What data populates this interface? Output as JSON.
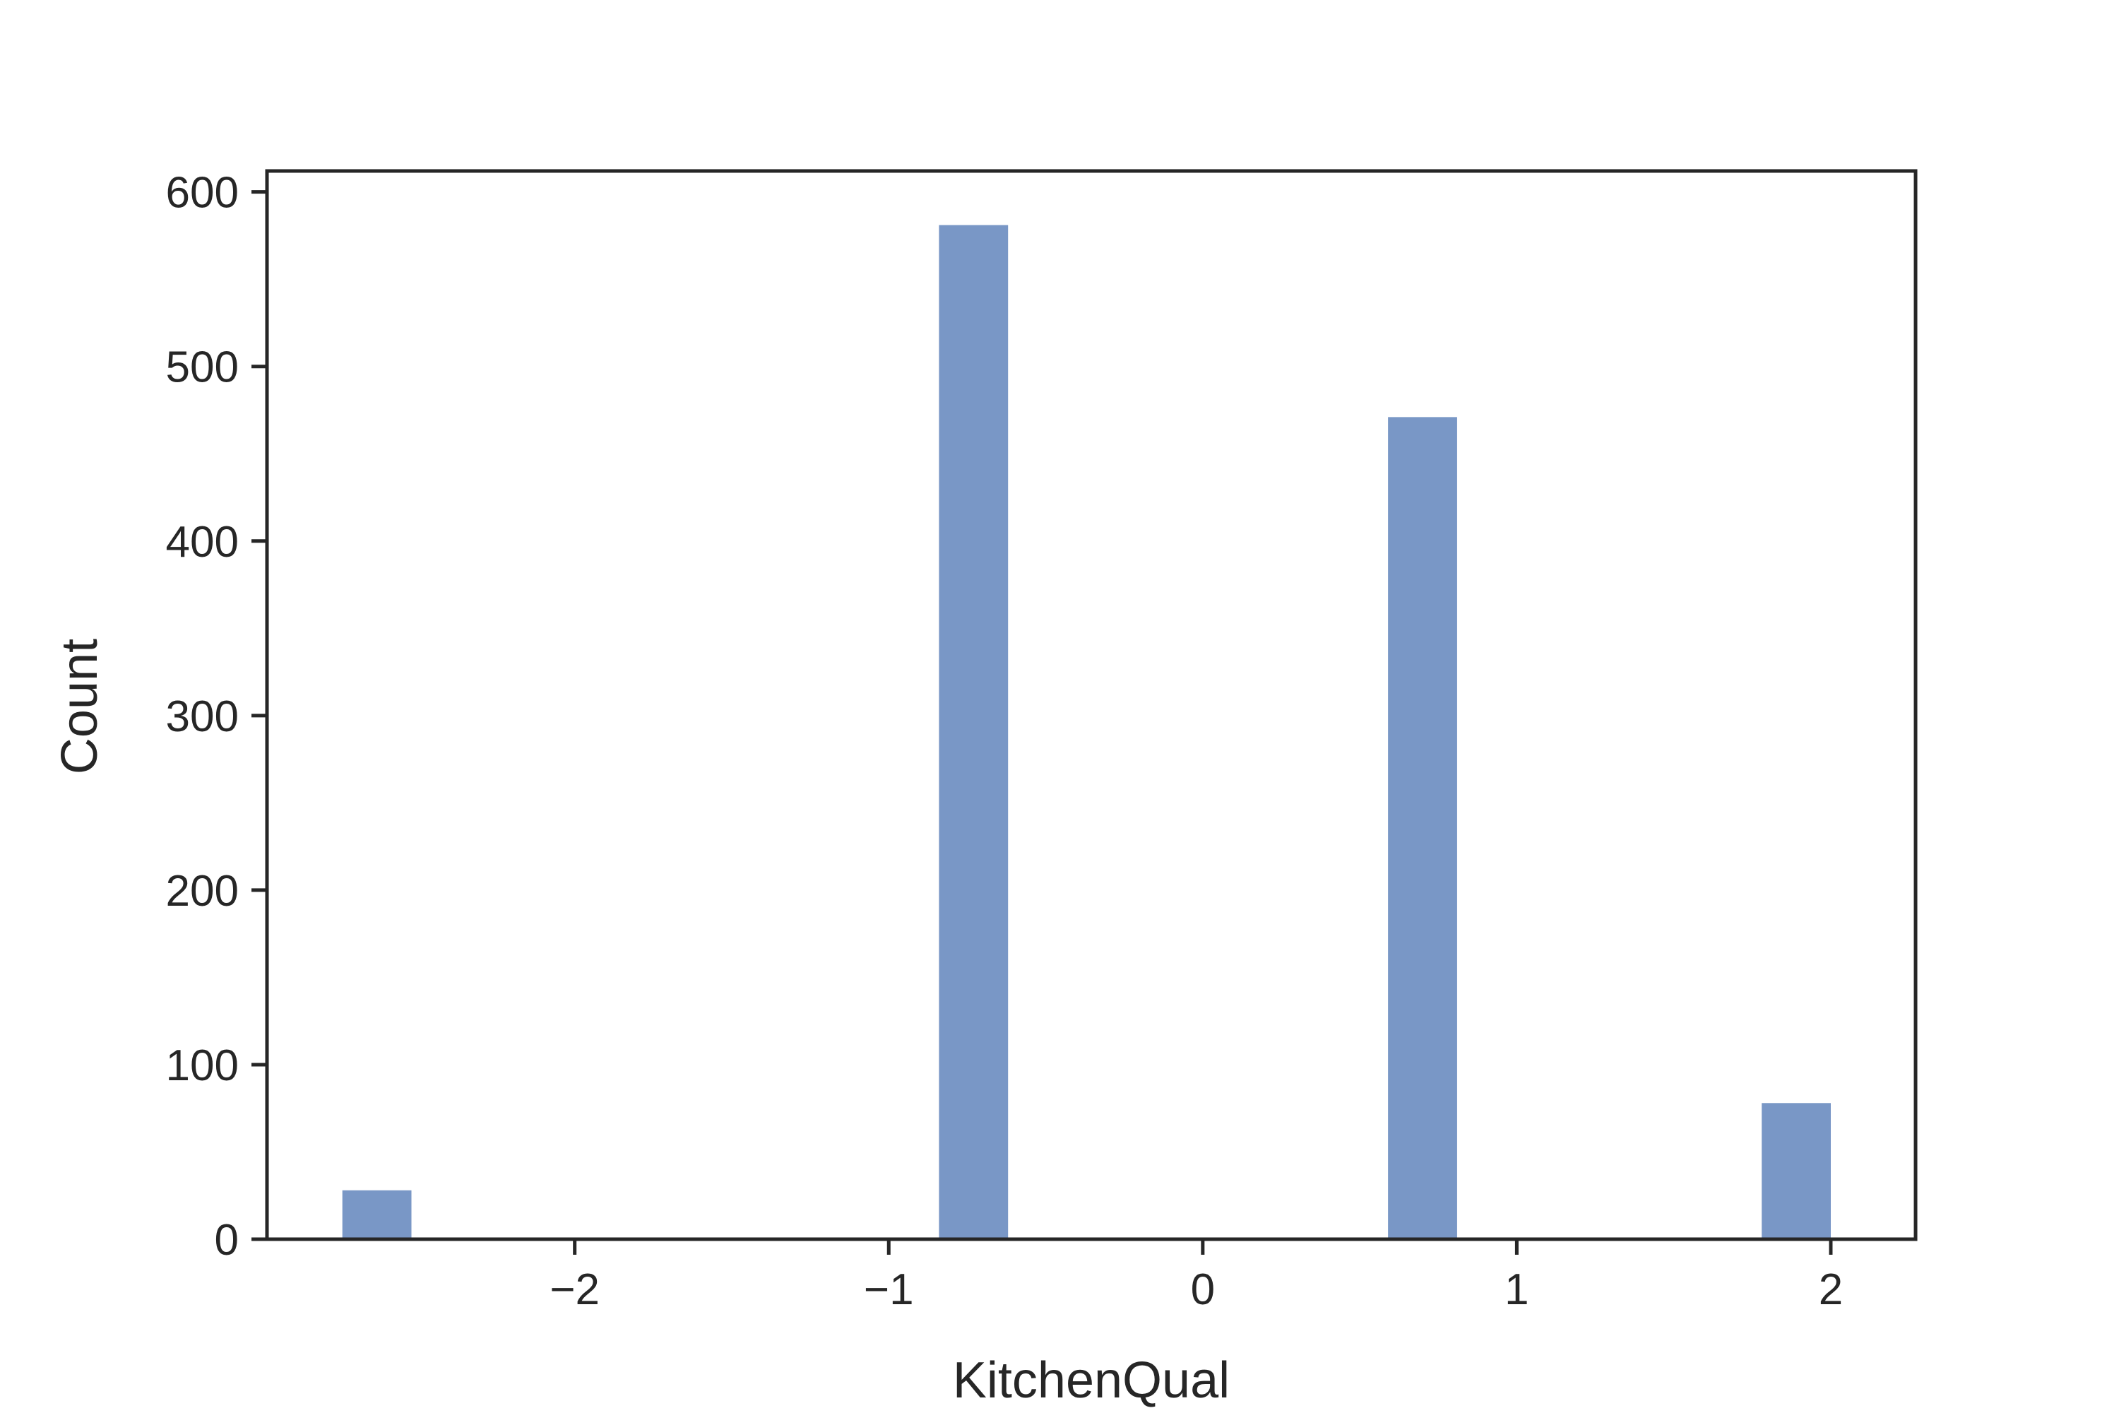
{
  "chart_data": {
    "type": "bar",
    "title": "",
    "xlabel": "KitchenQual",
    "ylabel": "Count",
    "xlim": [
      -2.98,
      2.27
    ],
    "ylim": [
      0,
      612
    ],
    "xticks": [
      {
        "value": -2,
        "label": "−2"
      },
      {
        "value": -1,
        "label": "−1"
      },
      {
        "value": 0,
        "label": "0"
      },
      {
        "value": 1,
        "label": "1"
      },
      {
        "value": 2,
        "label": "2"
      }
    ],
    "yticks": [
      {
        "value": 0,
        "label": "0"
      },
      {
        "value": 100,
        "label": "100"
      },
      {
        "value": 200,
        "label": "200"
      },
      {
        "value": 300,
        "label": "300"
      },
      {
        "value": 400,
        "label": "400"
      },
      {
        "value": 500,
        "label": "500"
      },
      {
        "value": 600,
        "label": "600"
      }
    ],
    "bins": [
      {
        "x0": -2.74,
        "x1": -2.52,
        "count": 28
      },
      {
        "x0": -0.84,
        "x1": -0.62,
        "count": 581
      },
      {
        "x0": 0.59,
        "x1": 0.81,
        "count": 471
      },
      {
        "x0": 1.78,
        "x1": 2.0,
        "count": 78
      }
    ],
    "grid": false,
    "colors": {
      "bar": "#7997c6",
      "axis": "#262626"
    }
  }
}
